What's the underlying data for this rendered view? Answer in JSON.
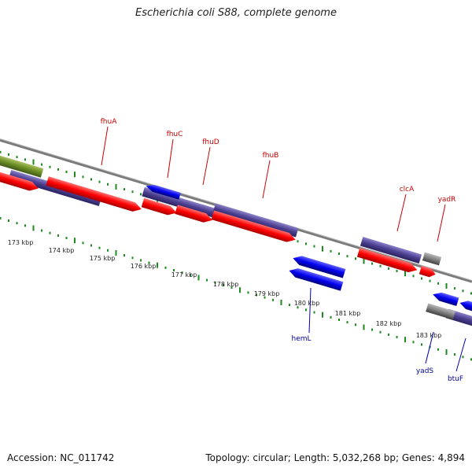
{
  "title": "Escherichia coli S88, complete genome",
  "footer": {
    "accession": "Accession: NC_011742",
    "topology": "Topology: circular; Length: 5,032,268 bp; Genes: 4,894"
  },
  "colors": {
    "backbone": "#7a7a7a",
    "tick": "#1c8a1c",
    "forward_cds": "#ff0000",
    "forward_gene_block": "#4b3f8f",
    "reverse_cds": "#0000ee",
    "other_feature": "#6b8e23",
    "unknown_feature": "#808080",
    "forward_label": "#cc0000",
    "reverse_label": "#0000aa"
  },
  "ruler": {
    "unit": "kbp",
    "labels": [
      "173 kbp",
      "174 kbp",
      "175 kbp",
      "176 kbp",
      "177 kbp",
      "178 kbp",
      "179 kbp",
      "180 kbp",
      "181 kbp",
      "182 kbp",
      "183 kbp"
    ]
  },
  "forward_labels": [
    "fhuA",
    "fhuC",
    "fhuD",
    "fhuB",
    "clcA",
    "yadR"
  ],
  "reverse_labels": [
    "hemL",
    "yadS",
    "btuF"
  ]
}
